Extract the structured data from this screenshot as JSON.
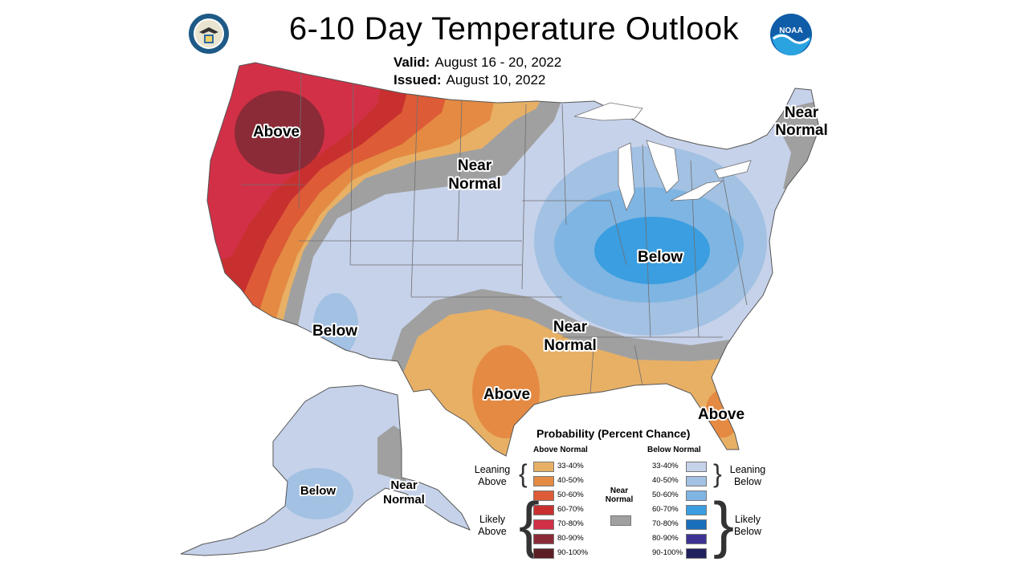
{
  "header": {
    "title": "6-10 Day Temperature Outlook",
    "valid_label": "Valid:",
    "valid_value": "August 16 - 20, 2022",
    "issued_label": "Issued:",
    "issued_value": "August 10, 2022"
  },
  "logos": {
    "left": "commerce-seal",
    "right": "noaa-logo",
    "noaa_text": "NOAA"
  },
  "map_labels": {
    "above_northwest": "Above",
    "near_normal_plains": [
      "Near",
      "Normal"
    ],
    "near_normal_northeast": [
      "Near",
      "Normal"
    ],
    "below_southwest": "Below",
    "below_midwest": "Below",
    "near_normal_south": [
      "Near",
      "Normal"
    ],
    "above_texas": "Above",
    "above_florida": "Above",
    "below_alaska": "Below",
    "near_normal_alaska": [
      "Near",
      "Normal"
    ]
  },
  "legend": {
    "title": "Probability (Percent Chance)",
    "above_header": "Above Normal",
    "below_header": "Below Normal",
    "near_normal_label": [
      "Near",
      "Normal"
    ],
    "leaning_above": [
      "Leaning",
      "Above"
    ],
    "likely_above": [
      "Likely",
      "Above"
    ],
    "leaning_below": [
      "Leaning",
      "Below"
    ],
    "likely_below": [
      "Likely",
      "Below"
    ],
    "above_ranges": [
      "33-40%",
      "40-50%",
      "50-60%",
      "60-70%",
      "70-80%",
      "80-90%",
      "90-100%"
    ],
    "below_ranges": [
      "33-40%",
      "40-50%",
      "50-60%",
      "60-70%",
      "70-80%",
      "80-90%",
      "90-100%"
    ]
  },
  "colors": {
    "above": [
      "#e8b065",
      "#e48a43",
      "#dd5b37",
      "#c8302f",
      "#d23047",
      "#8b2b37",
      "#5c1f24"
    ],
    "below": [
      "#c6d2ea",
      "#a2c1e3",
      "#7fb5e3",
      "#3a9ee0",
      "#1a6fbc",
      "#3d3393",
      "#22215f"
    ],
    "near_normal": "#a0a0a0",
    "water_lines": "#ffffff"
  }
}
